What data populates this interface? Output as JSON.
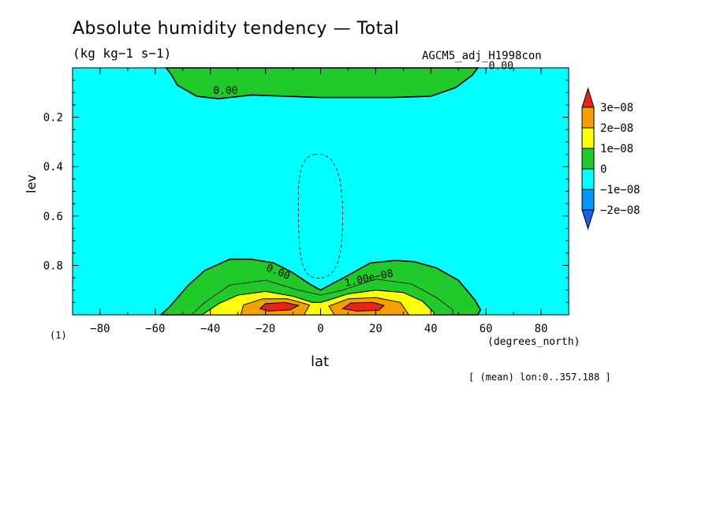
{
  "header": {
    "title": "Absolute humidity tendency — Total",
    "units": "(kg kg−1 s−1)",
    "run": "AGCM5_adj_H1998con"
  },
  "axes": {
    "xlabel": "lat",
    "ylabel": "lev",
    "xunit": "(degrees_north)",
    "yunit": "(1)",
    "footer": "[ (mean) lon:0..357.188 ]"
  },
  "chart_data": {
    "type": "heatmap",
    "subtype": "filled-contour",
    "title": "Absolute humidity tendency — Total",
    "xlabel": "lat",
    "ylabel": "lev",
    "xlim": [
      -90,
      90
    ],
    "ylim": [
      1.0,
      0.0
    ],
    "y_inverted": true,
    "x_ticks": [
      -80,
      -60,
      -40,
      -20,
      0,
      20,
      40,
      60,
      80
    ],
    "y_ticks": [
      0.2,
      0.4,
      0.6,
      0.8
    ],
    "background_level": "-1e-08 to 0",
    "colorbar": {
      "levels": [
        "3e−08",
        "2e−08",
        "1e−08",
        "0",
        "−1e−08",
        "−2e−08"
      ],
      "bands": [
        {
          "range": "> 3e-08",
          "color": "#e8231a"
        },
        {
          "range": "2e-08 to 3e-08",
          "color": "#f5a000"
        },
        {
          "range": "1e-08 to 2e-08",
          "color": "#ffff00"
        },
        {
          "range": "0 to 1e-08",
          "color": "#21c92a"
        },
        {
          "range": "-1e-08 to 0",
          "color": "#00ffff"
        },
        {
          "range": "-2e-08 to -1e-08",
          "color": "#0096ff"
        },
        {
          "range": "< -2e-08",
          "color": "#1e5fe0"
        }
      ]
    },
    "contour_labels": [
      "0.00",
      "0.00",
      "0.00",
      "1.00e−08"
    ],
    "regions": [
      {
        "name": "upper positive band",
        "level": "0 to 1e-08",
        "lat": [
          -55,
          58
        ],
        "lev": [
          0.0,
          0.13
        ]
      },
      {
        "name": "lower positive lobes",
        "level": "0 to 1e-08",
        "lat": [
          -58,
          58
        ],
        "lev": [
          0.77,
          1.0
        ]
      },
      {
        "name": "moist maxima",
        "level": "> 3e-08",
        "lat_centers": [
          -15,
          15
        ],
        "lev": [
          0.95,
          0.98
        ]
      },
      {
        "name": "weak negative column",
        "level": "< 0 (dashed)",
        "lat": [
          -8,
          8
        ],
        "lev": [
          0.35,
          0.85
        ]
      }
    ]
  }
}
